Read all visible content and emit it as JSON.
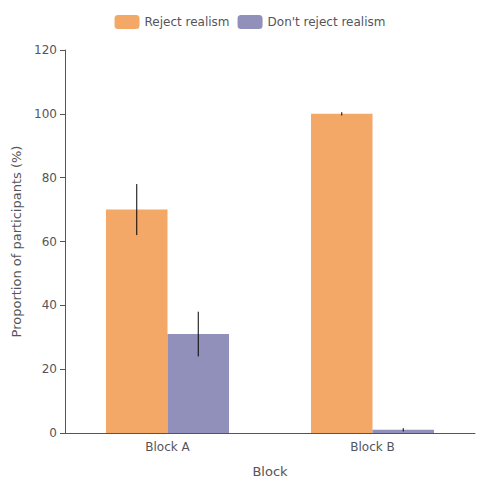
{
  "chart_data": {
    "type": "bar",
    "categories": [
      "Block A",
      "Block B"
    ],
    "series": [
      {
        "name": "Reject realism",
        "color": "#F4A868",
        "values": [
          70,
          100
        ],
        "errors": [
          8,
          0.5
        ]
      },
      {
        "name": "Don't reject realism",
        "color": "#9090BB",
        "values": [
          31,
          1
        ],
        "errors": [
          7,
          0.5
        ]
      }
    ],
    "xlabel": "Block",
    "ylabel": "Proportion of participants (%)",
    "ylim": [
      0,
      120
    ],
    "yticks": [
      0,
      20,
      40,
      60,
      80,
      100,
      120
    ],
    "grid": false,
    "legend": "top"
  }
}
